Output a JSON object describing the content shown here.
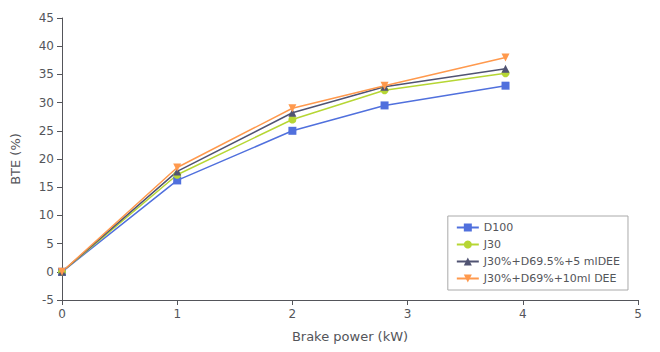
{
  "chart_data": {
    "type": "line",
    "xlabel": "Brake power (kW)",
    "ylabel": "BTE (%)",
    "x": [
      0,
      1.0,
      2.0,
      2.8,
      3.85
    ],
    "series": [
      {
        "name": "D100",
        "values": [
          0,
          16.2,
          25.0,
          29.5,
          33.0
        ],
        "marker": "square"
      },
      {
        "name": "J30",
        "values": [
          0,
          17.2,
          27.0,
          32.2,
          35.2
        ],
        "marker": "circle"
      },
      {
        "name": "J30%+D69.5%+5 mlDEE",
        "values": [
          0,
          17.8,
          28.2,
          32.8,
          36.0
        ],
        "marker": "triangle"
      },
      {
        "name": "J30%+D69%+10ml DEE",
        "values": [
          0,
          18.5,
          29.0,
          33.0,
          38.0
        ],
        "marker": "triangle-down"
      }
    ],
    "xlim": [
      0,
      5
    ],
    "ylim": [
      -5,
      45
    ],
    "xticks": [
      0,
      1,
      2,
      3,
      4,
      5
    ],
    "yticks": [
      -5,
      0,
      5,
      10,
      15,
      20,
      25,
      30,
      35,
      40,
      45
    ],
    "grid": false,
    "legend": "lower right"
  }
}
